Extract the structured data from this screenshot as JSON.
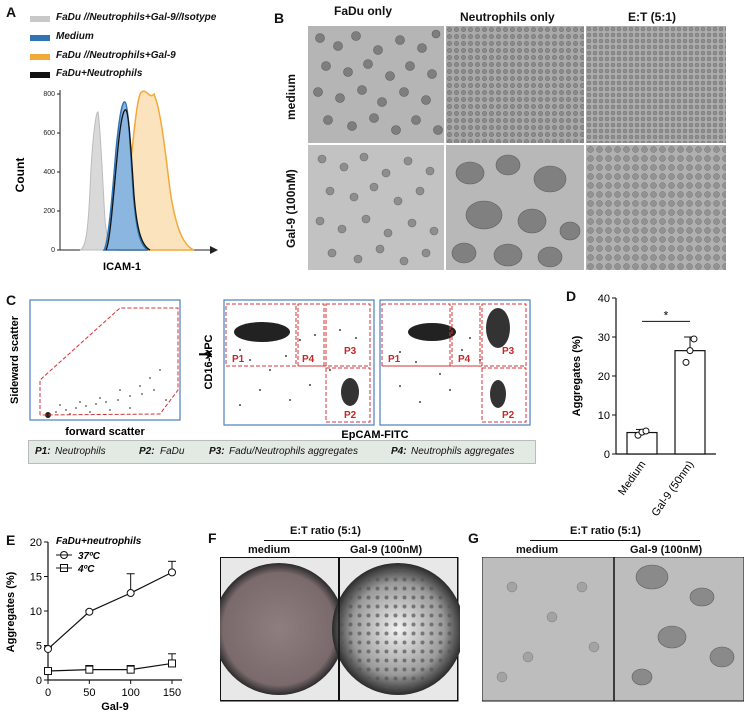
{
  "panels": {
    "A": "A",
    "B": "B",
    "C": "C",
    "D": "D",
    "E": "E",
    "F": "F",
    "G": "G"
  },
  "panel_a": {
    "legend": [
      {
        "label": "FaDu //Neutrophils+Gal-9//Isotype",
        "color": "#c8c8c8"
      },
      {
        "label": "Medium",
        "color": "#2f74b5"
      },
      {
        "label": "FaDu //Neutrophils+Gal-9",
        "color": "#f3a93a"
      },
      {
        "label": "FaDu+Neutrophils",
        "color": "#111111"
      }
    ],
    "ylabel": "Count",
    "xlabel": "ICAM-1",
    "yticks": [
      "0",
      "200",
      "400",
      "600",
      "800"
    ]
  },
  "panel_b": {
    "col_headers": [
      "FaDu only",
      "Neutrophils only",
      "E:T (5:1)"
    ],
    "row_headers": [
      "medium",
      "Gal-9 (100nM)"
    ]
  },
  "panel_c": {
    "scatter_xlabel": "forward scatter",
    "scatter_ylabel": "Sideward scatter",
    "gate_ylabel": "CD16-APC",
    "gate_xlabel": "EpCAM-FITC",
    "gates": [
      "P1",
      "P4",
      "P3",
      "P2"
    ],
    "legend_box": [
      {
        "key": "P1:",
        "text": "Neutrophils"
      },
      {
        "key": "P2:",
        "text": "FaDu"
      },
      {
        "key": "P3:",
        "text": "Fadu/Neutrophils aggregates"
      },
      {
        "key": "P4:",
        "text": "Neutrophils aggregates"
      }
    ]
  },
  "panel_d": {
    "ylabel": "Aggregates (%)",
    "yticks": [
      "0",
      "10",
      "20",
      "30",
      "40"
    ],
    "significance": "*",
    "chart_data": {
      "type": "bar",
      "categories": [
        "Medium",
        "Gal-9 (50nm)"
      ],
      "values": [
        5.5,
        26.5
      ],
      "errors": [
        0.8,
        3.5
      ],
      "points": [
        [
          4.8,
          5.6,
          5.9
        ],
        [
          23.5,
          26.5,
          29.5
        ]
      ],
      "ylim": [
        0,
        40
      ],
      "ylabel": "Aggregates (%)"
    }
  },
  "panel_e": {
    "title": "FaDu+neutrophils",
    "legend": [
      "37ºC",
      "4ºC"
    ],
    "ylabel": "Aggregates (%)",
    "xlabel": "Gal-9",
    "yticks": [
      "0",
      "5",
      "10",
      "15",
      "20"
    ],
    "xticks": [
      "0",
      "50",
      "100",
      "150"
    ],
    "chart_data": {
      "type": "line",
      "x": [
        0,
        50,
        100,
        150
      ],
      "series": [
        {
          "name": "37ºC",
          "values": [
            4.5,
            9.9,
            12.6,
            15.6
          ],
          "errors": [
            0.3,
            0.2,
            2.8,
            1.6
          ]
        },
        {
          "name": "4ºC",
          "values": [
            1.3,
            1.5,
            1.5,
            2.4
          ],
          "errors": [
            0.2,
            0.6,
            0.6,
            1.4
          ]
        }
      ],
      "ylim": [
        0,
        20
      ],
      "xlim": [
        0,
        150
      ],
      "xlabel": "Gal-9",
      "ylabel": "Aggregates (%)"
    }
  },
  "panel_f": {
    "title": "E:T ratio (5:1)",
    "cols": [
      "medium",
      "Gal-9 (100nM)"
    ]
  },
  "panel_g": {
    "title": "E:T ratio (5:1)",
    "cols": [
      "medium",
      "Gal-9 (100nM)"
    ]
  }
}
